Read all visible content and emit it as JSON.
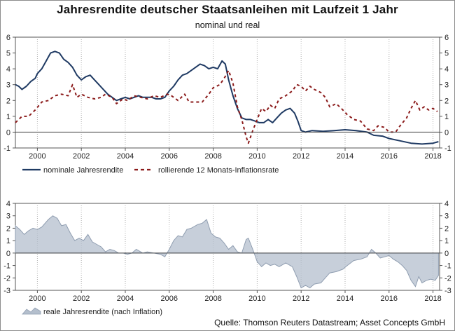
{
  "title": "Jahresrendite deutscher Staatsanleihen mit Laufzeit 1 Jahr",
  "subtitle": "nominal und real",
  "source": "Quelle: Thomson Reuters Datastream; Asset Concepts GmbH",
  "chart_data": [
    {
      "type": "line",
      "x_ticks": [
        "2000",
        "2002",
        "2004",
        "2006",
        "2008",
        "2010",
        "2012",
        "2014",
        "2016",
        "2018"
      ],
      "y_ticks": [
        "-1",
        "0",
        "1",
        "2",
        "3",
        "4",
        "5",
        "6"
      ],
      "ylim": [
        -1,
        6
      ],
      "xlim": [
        1999.0,
        2018.3
      ],
      "grid": "vertical dotted",
      "legend_position": "bottom",
      "series": [
        {
          "name": "nominale Jahresrendite",
          "color": "#1f3a63",
          "style": "solid",
          "points": [
            [
              1999.0,
              3.0
            ],
            [
              1999.15,
              2.9
            ],
            [
              1999.3,
              2.7
            ],
            [
              1999.5,
              2.9
            ],
            [
              1999.7,
              3.2
            ],
            [
              1999.9,
              3.4
            ],
            [
              2000.0,
              3.7
            ],
            [
              2000.2,
              4.0
            ],
            [
              2000.4,
              4.5
            ],
            [
              2000.6,
              5.0
            ],
            [
              2000.8,
              5.1
            ],
            [
              2001.0,
              5.0
            ],
            [
              2001.2,
              4.6
            ],
            [
              2001.4,
              4.4
            ],
            [
              2001.6,
              4.1
            ],
            [
              2001.8,
              3.6
            ],
            [
              2002.0,
              3.3
            ],
            [
              2002.2,
              3.5
            ],
            [
              2002.4,
              3.6
            ],
            [
              2002.6,
              3.3
            ],
            [
              2002.8,
              3.0
            ],
            [
              2003.0,
              2.7
            ],
            [
              2003.2,
              2.4
            ],
            [
              2003.4,
              2.2
            ],
            [
              2003.6,
              2.0
            ],
            [
              2003.8,
              2.1
            ],
            [
              2004.0,
              2.2
            ],
            [
              2004.2,
              2.1
            ],
            [
              2004.4,
              2.2
            ],
            [
              2004.6,
              2.3
            ],
            [
              2004.8,
              2.2
            ],
            [
              2005.0,
              2.2
            ],
            [
              2005.2,
              2.2
            ],
            [
              2005.4,
              2.1
            ],
            [
              2005.6,
              2.1
            ],
            [
              2005.8,
              2.2
            ],
            [
              2006.0,
              2.6
            ],
            [
              2006.2,
              2.9
            ],
            [
              2006.4,
              3.3
            ],
            [
              2006.6,
              3.6
            ],
            [
              2006.8,
              3.7
            ],
            [
              2007.0,
              3.9
            ],
            [
              2007.2,
              4.1
            ],
            [
              2007.4,
              4.3
            ],
            [
              2007.6,
              4.2
            ],
            [
              2007.8,
              4.0
            ],
            [
              2008.0,
              4.1
            ],
            [
              2008.2,
              4.0
            ],
            [
              2008.4,
              4.5
            ],
            [
              2008.55,
              4.3
            ],
            [
              2008.7,
              3.3
            ],
            [
              2008.9,
              2.3
            ],
            [
              2009.1,
              1.5
            ],
            [
              2009.3,
              0.9
            ],
            [
              2009.5,
              0.8
            ],
            [
              2009.7,
              0.8
            ],
            [
              2009.9,
              0.7
            ],
            [
              2010.1,
              0.6
            ],
            [
              2010.3,
              0.6
            ],
            [
              2010.5,
              0.8
            ],
            [
              2010.7,
              0.6
            ],
            [
              2010.9,
              0.9
            ],
            [
              2011.1,
              1.2
            ],
            [
              2011.3,
              1.4
            ],
            [
              2011.5,
              1.5
            ],
            [
              2011.7,
              1.2
            ],
            [
              2011.85,
              0.7
            ],
            [
              2012.0,
              0.1
            ],
            [
              2012.2,
              0.0
            ],
            [
              2012.5,
              0.1
            ],
            [
              2013.0,
              0.05
            ],
            [
              2013.5,
              0.1
            ],
            [
              2014.0,
              0.15
            ],
            [
              2014.5,
              0.1
            ],
            [
              2015.0,
              0.0
            ],
            [
              2015.3,
              -0.2
            ],
            [
              2015.7,
              -0.25
            ],
            [
              2016.0,
              -0.4
            ],
            [
              2016.5,
              -0.55
            ],
            [
              2017.0,
              -0.7
            ],
            [
              2017.5,
              -0.75
            ],
            [
              2018.0,
              -0.7
            ],
            [
              2018.25,
              -0.6
            ]
          ]
        },
        {
          "name": "rollierende 12 Monats-Inflationsrate",
          "color": "#8b1a1a",
          "style": "dashed",
          "points": [
            [
              1999.0,
              0.6
            ],
            [
              1999.3,
              1.0
            ],
            [
              1999.6,
              1.0
            ],
            [
              1999.9,
              1.4
            ],
            [
              2000.2,
              1.9
            ],
            [
              2000.5,
              2.0
            ],
            [
              2000.8,
              2.3
            ],
            [
              2001.1,
              2.4
            ],
            [
              2001.4,
              2.3
            ],
            [
              2001.6,
              3.0
            ],
            [
              2001.8,
              2.2
            ],
            [
              2002.0,
              2.4
            ],
            [
              2002.3,
              2.2
            ],
            [
              2002.6,
              2.1
            ],
            [
              2002.9,
              2.2
            ],
            [
              2003.1,
              2.4
            ],
            [
              2003.4,
              2.2
            ],
            [
              2003.6,
              1.8
            ],
            [
              2003.9,
              2.1
            ],
            [
              2004.1,
              2.0
            ],
            [
              2004.4,
              2.3
            ],
            [
              2004.7,
              2.2
            ],
            [
              2005.0,
              2.1
            ],
            [
              2005.3,
              2.3
            ],
            [
              2005.6,
              2.2
            ],
            [
              2005.9,
              2.4
            ],
            [
              2006.1,
              2.3
            ],
            [
              2006.4,
              2.0
            ],
            [
              2006.7,
              2.4
            ],
            [
              2006.9,
              1.9
            ],
            [
              2007.2,
              1.9
            ],
            [
              2007.5,
              1.9
            ],
            [
              2007.8,
              2.4
            ],
            [
              2008.0,
              2.8
            ],
            [
              2008.3,
              3.0
            ],
            [
              2008.5,
              3.4
            ],
            [
              2008.7,
              3.9
            ],
            [
              2008.9,
              3.1
            ],
            [
              2009.1,
              1.6
            ],
            [
              2009.3,
              0.8
            ],
            [
              2009.5,
              -0.3
            ],
            [
              2009.6,
              -0.7
            ],
            [
              2009.8,
              0.1
            ],
            [
              2010.0,
              0.8
            ],
            [
              2010.2,
              1.5
            ],
            [
              2010.4,
              1.3
            ],
            [
              2010.6,
              1.7
            ],
            [
              2010.8,
              1.5
            ],
            [
              2011.0,
              2.1
            ],
            [
              2011.3,
              2.3
            ],
            [
              2011.6,
              2.6
            ],
            [
              2011.8,
              3.0
            ],
            [
              2012.0,
              2.9
            ],
            [
              2012.2,
              2.6
            ],
            [
              2012.4,
              2.9
            ],
            [
              2012.6,
              2.7
            ],
            [
              2012.9,
              2.5
            ],
            [
              2013.1,
              2.2
            ],
            [
              2013.3,
              1.6
            ],
            [
              2013.6,
              1.8
            ],
            [
              2013.9,
              1.4
            ],
            [
              2014.1,
              1.1
            ],
            [
              2014.4,
              0.8
            ],
            [
              2014.7,
              0.7
            ],
            [
              2015.0,
              0.2
            ],
            [
              2015.3,
              0.1
            ],
            [
              2015.5,
              0.4
            ],
            [
              2015.8,
              0.3
            ],
            [
              2016.0,
              0.0
            ],
            [
              2016.3,
              0.0
            ],
            [
              2016.5,
              0.4
            ],
            [
              2016.8,
              0.9
            ],
            [
              2017.0,
              1.5
            ],
            [
              2017.2,
              2.0
            ],
            [
              2017.4,
              1.4
            ],
            [
              2017.6,
              1.6
            ],
            [
              2017.8,
              1.4
            ],
            [
              2018.0,
              1.5
            ],
            [
              2018.2,
              1.3
            ]
          ]
        }
      ]
    },
    {
      "type": "area",
      "x_ticks": [
        "2000",
        "2002",
        "2004",
        "2006",
        "2008",
        "2010",
        "2012",
        "2014",
        "2016",
        "2018"
      ],
      "y_ticks": [
        "-3",
        "-2",
        "-1",
        "0",
        "1",
        "2",
        "3",
        "4"
      ],
      "ylim": [
        -3,
        4
      ],
      "xlim": [
        1999.0,
        2018.3
      ],
      "grid": "vertical dotted",
      "legend_position": "bottom",
      "series": [
        {
          "name": "reale Jahresrendite (nach Inflation)",
          "color": "#b4bfcd",
          "points": [
            [
              1999.0,
              2.2
            ],
            [
              1999.2,
              1.9
            ],
            [
              1999.4,
              1.5
            ],
            [
              1999.6,
              1.8
            ],
            [
              1999.8,
              2.0
            ],
            [
              2000.0,
              1.9
            ],
            [
              2000.2,
              2.1
            ],
            [
              2000.5,
              2.7
            ],
            [
              2000.7,
              3.0
            ],
            [
              2000.9,
              2.8
            ],
            [
              2001.1,
              2.2
            ],
            [
              2001.3,
              2.3
            ],
            [
              2001.5,
              1.6
            ],
            [
              2001.7,
              1.0
            ],
            [
              2001.9,
              1.2
            ],
            [
              2002.1,
              1.0
            ],
            [
              2002.3,
              1.5
            ],
            [
              2002.5,
              0.9
            ],
            [
              2002.7,
              0.7
            ],
            [
              2002.9,
              0.5
            ],
            [
              2003.1,
              0.1
            ],
            [
              2003.3,
              0.3
            ],
            [
              2003.5,
              0.2
            ],
            [
              2003.7,
              0.0
            ],
            [
              2003.9,
              0.0
            ],
            [
              2004.1,
              -0.1
            ],
            [
              2004.3,
              0.0
            ],
            [
              2004.5,
              0.3
            ],
            [
              2004.8,
              0.0
            ],
            [
              2005.0,
              0.1
            ],
            [
              2005.3,
              0.0
            ],
            [
              2005.6,
              -0.1
            ],
            [
              2005.8,
              -0.3
            ],
            [
              2006.0,
              0.3
            ],
            [
              2006.2,
              1.0
            ],
            [
              2006.4,
              1.4
            ],
            [
              2006.6,
              1.3
            ],
            [
              2006.8,
              1.9
            ],
            [
              2007.0,
              2.0
            ],
            [
              2007.3,
              2.3
            ],
            [
              2007.5,
              2.4
            ],
            [
              2007.7,
              2.7
            ],
            [
              2007.9,
              1.6
            ],
            [
              2008.1,
              1.3
            ],
            [
              2008.3,
              1.2
            ],
            [
              2008.5,
              0.8
            ],
            [
              2008.7,
              0.3
            ],
            [
              2008.9,
              0.6
            ],
            [
              2009.1,
              0.1
            ],
            [
              2009.3,
              0.0
            ],
            [
              2009.5,
              1.1
            ],
            [
              2009.6,
              1.2
            ],
            [
              2009.8,
              0.3
            ],
            [
              2010.0,
              -0.7
            ],
            [
              2010.2,
              -1.1
            ],
            [
              2010.4,
              -0.8
            ],
            [
              2010.6,
              -1.0
            ],
            [
              2010.8,
              -0.9
            ],
            [
              2011.0,
              -1.1
            ],
            [
              2011.3,
              -0.8
            ],
            [
              2011.6,
              -1.1
            ],
            [
              2011.8,
              -1.9
            ],
            [
              2012.0,
              -2.8
            ],
            [
              2012.2,
              -2.6
            ],
            [
              2012.4,
              -2.8
            ],
            [
              2012.6,
              -2.5
            ],
            [
              2012.9,
              -2.4
            ],
            [
              2013.1,
              -2.0
            ],
            [
              2013.3,
              -1.6
            ],
            [
              2013.6,
              -1.5
            ],
            [
              2013.9,
              -1.3
            ],
            [
              2014.1,
              -1.0
            ],
            [
              2014.4,
              -0.6
            ],
            [
              2014.7,
              -0.5
            ],
            [
              2015.0,
              -0.3
            ],
            [
              2015.2,
              0.3
            ],
            [
              2015.4,
              0.0
            ],
            [
              2015.6,
              -0.4
            ],
            [
              2015.8,
              -0.3
            ],
            [
              2016.0,
              -0.2
            ],
            [
              2016.2,
              -0.5
            ],
            [
              2016.4,
              -0.7
            ],
            [
              2016.6,
              -1.0
            ],
            [
              2016.8,
              -1.4
            ],
            [
              2017.0,
              -2.2
            ],
            [
              2017.2,
              -2.7
            ],
            [
              2017.35,
              -1.9
            ],
            [
              2017.5,
              -2.4
            ],
            [
              2017.7,
              -2.2
            ],
            [
              2017.9,
              -2.1
            ],
            [
              2018.1,
              -2.2
            ],
            [
              2018.25,
              -1.8
            ]
          ]
        }
      ]
    }
  ]
}
